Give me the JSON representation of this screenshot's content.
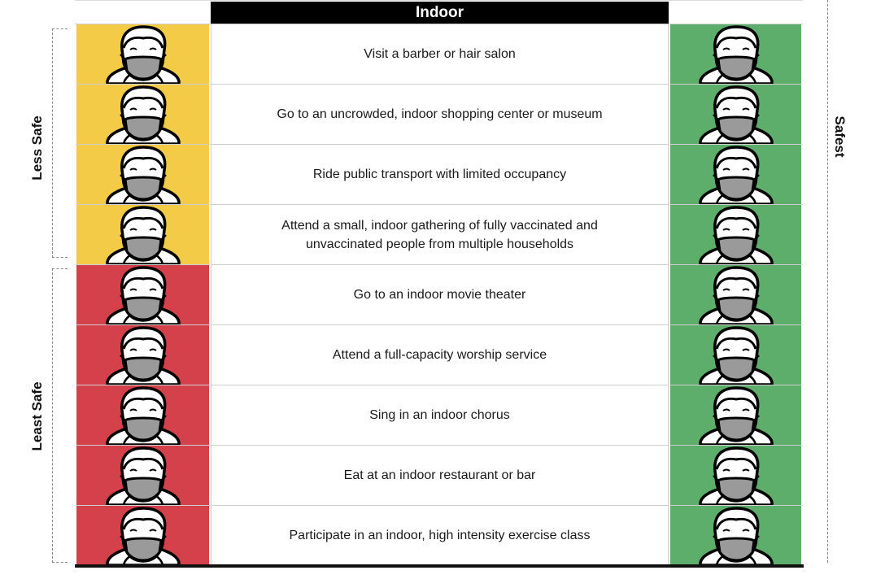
{
  "header": {
    "title": "Indoor"
  },
  "labels": {
    "less_safe": "Less Safe",
    "least_safe": "Least Safe",
    "safest": "Safest"
  },
  "colors": {
    "less_safe": "#f4cb46",
    "least_safe": "#d5414b",
    "safest": "#5cae6a"
  },
  "icon": "masked-face-icon",
  "rows": [
    {
      "text": "Visit a barber or hair salon",
      "risk": "less-safe"
    },
    {
      "text": "Go to an uncrowded, indoor shopping center or museum",
      "risk": "less-safe"
    },
    {
      "text": "Ride public transport with limited occupancy",
      "risk": "less-safe"
    },
    {
      "text": "Attend a small, indoor gathering of fully vaccinated and unvaccinated people from multiple households",
      "risk": "less-safe"
    },
    {
      "text": "Go to an indoor movie theater",
      "risk": "least-safe"
    },
    {
      "text": "Attend a full-capacity worship service",
      "risk": "least-safe"
    },
    {
      "text": "Sing in an indoor chorus",
      "risk": "least-safe"
    },
    {
      "text": "Eat at an indoor restaurant or bar",
      "risk": "least-safe"
    },
    {
      "text": "Participate in an indoor, high intensity exercise class",
      "risk": "least-safe"
    }
  ]
}
